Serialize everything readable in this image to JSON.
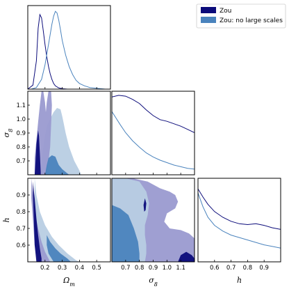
{
  "chart_data": {
    "type": "corner",
    "parameters": [
      {
        "key": "om",
        "label": "Ω",
        "label_sub": "m",
        "range": [
          0.1,
          0.58
        ],
        "ticks": [
          "0.2",
          "0.3",
          "0.4",
          "0.5"
        ],
        "tick_values": [
          0.2,
          0.3,
          0.4,
          0.5
        ]
      },
      {
        "key": "s8",
        "label": "σ",
        "label_sub": "8",
        "range": [
          0.6,
          1.2
        ],
        "ticks": [
          "0.7",
          "0.8",
          "0.9",
          "1.0",
          "1.1"
        ],
        "tick_values": [
          0.7,
          0.8,
          0.9,
          1.0,
          1.1
        ]
      },
      {
        "key": "h",
        "label": "h",
        "label_sub": "",
        "range": [
          0.5,
          1.0
        ],
        "ticks": [
          "0.6",
          "0.7",
          "0.8",
          "0.9"
        ],
        "tick_values": [
          0.6,
          0.7,
          0.8,
          0.9
        ]
      }
    ],
    "y_tick_labels": {
      "s8": [
        "0.7",
        "0.8",
        "0.9",
        "1.0",
        "1.1"
      ],
      "h": [
        "0.6",
        "0.7",
        "0.8",
        "0.9"
      ]
    },
    "x_tick_labels": {
      "om": [
        "0.2",
        "0.3",
        "0.4",
        "0.5"
      ],
      "s8": [
        "0.7",
        "0.8",
        "0.9",
        "1.0",
        "1.1"
      ],
      "h": [
        "0.6",
        "0.7",
        "0.8",
        "0.9"
      ]
    },
    "legend": {
      "placement": "top-right",
      "entries": [
        {
          "name": "Zou",
          "color": "#0b0b7a"
        },
        {
          "name": "Zou: no large scales",
          "color": "#4a83bd"
        }
      ]
    },
    "series": [
      {
        "name": "Zou",
        "color": "#0b0b7a",
        "marginals": {
          "om": {
            "x": [
              0.1,
              0.13,
              0.15,
              0.16,
              0.17,
              0.18,
              0.19,
              0.2,
              0.21,
              0.22,
              0.23,
              0.24,
              0.25,
              0.26,
              0.28,
              0.3,
              0.33
            ],
            "y": [
              0.0,
              0.05,
              0.35,
              0.75,
              0.92,
              0.88,
              0.72,
              0.55,
              0.4,
              0.28,
              0.19,
              0.12,
              0.07,
              0.04,
              0.015,
              0.005,
              0.0
            ]
          },
          "s8": {
            "x": [
              0.6,
              0.65,
              0.7,
              0.75,
              0.8,
              0.85,
              0.9,
              0.95,
              1.0,
              1.05,
              1.1,
              1.15,
              1.2
            ],
            "y": [
              0.96,
              0.98,
              0.97,
              0.93,
              0.88,
              0.8,
              0.73,
              0.68,
              0.66,
              0.63,
              0.6,
              0.56,
              0.52
            ]
          },
          "h": {
            "x": [
              0.5,
              0.53,
              0.56,
              0.6,
              0.65,
              0.7,
              0.75,
              0.8,
              0.85,
              0.9,
              0.95,
              1.0
            ],
            "y": [
              0.9,
              0.8,
              0.71,
              0.62,
              0.55,
              0.5,
              0.47,
              0.46,
              0.47,
              0.45,
              0.42,
              0.4
            ]
          }
        }
      },
      {
        "name": "Zou: no large scales",
        "color": "#4a83bd",
        "marginals": {
          "om": {
            "x": [
              0.12,
              0.15,
              0.18,
              0.2,
              0.22,
              0.24,
              0.25,
              0.26,
              0.27,
              0.28,
              0.29,
              0.3,
              0.32,
              0.34,
              0.36,
              0.38,
              0.4,
              0.43,
              0.46,
              0.5,
              0.55
            ],
            "y": [
              0.0,
              0.02,
              0.12,
              0.3,
              0.55,
              0.8,
              0.9,
              0.96,
              0.94,
              0.85,
              0.73,
              0.6,
              0.42,
              0.28,
              0.18,
              0.11,
              0.07,
              0.04,
              0.02,
              0.01,
              0.0
            ]
          },
          "s8": {
            "x": [
              0.6,
              0.63,
              0.66,
              0.7,
              0.75,
              0.8,
              0.85,
              0.9,
              0.95,
              1.0,
              1.05,
              1.1,
              1.15,
              1.2
            ],
            "y": [
              0.78,
              0.7,
              0.62,
              0.52,
              0.42,
              0.34,
              0.27,
              0.22,
              0.18,
              0.15,
              0.12,
              0.1,
              0.08,
              0.07
            ]
          },
          "h": {
            "x": [
              0.5,
              0.53,
              0.56,
              0.6,
              0.65,
              0.7,
              0.75,
              0.8,
              0.85,
              0.9,
              0.95,
              1.0
            ],
            "y": [
              0.85,
              0.68,
              0.55,
              0.45,
              0.38,
              0.33,
              0.3,
              0.27,
              0.24,
              0.21,
              0.19,
              0.17
            ]
          }
        }
      }
    ],
    "contours": {
      "s8_vs_om": [
        {
          "series": "Zou: no large scales",
          "level": "95%",
          "color": "#b8cde3",
          "points": [
            [
              0.18,
              0.6
            ],
            [
              0.18,
              0.7
            ],
            [
              0.19,
              0.8
            ],
            [
              0.2,
              0.88
            ],
            [
              0.21,
              0.95
            ],
            [
              0.23,
              1.0
            ],
            [
              0.25,
              1.05
            ],
            [
              0.27,
              1.08
            ],
            [
              0.29,
              1.07
            ],
            [
              0.3,
              1.02
            ],
            [
              0.31,
              0.96
            ],
            [
              0.32,
              0.9
            ],
            [
              0.34,
              0.8
            ],
            [
              0.37,
              0.7
            ],
            [
              0.4,
              0.63
            ],
            [
              0.41,
              0.6
            ]
          ]
        },
        {
          "series": "Zou",
          "level": "95%",
          "color": "#9a9ad0",
          "points": [
            [
              0.14,
              0.6
            ],
            [
              0.14,
              0.72
            ],
            [
              0.15,
              0.85
            ],
            [
              0.16,
              0.98
            ],
            [
              0.17,
              1.1
            ],
            [
              0.18,
              1.2
            ],
            [
              0.19,
              1.2
            ],
            [
              0.2,
              1.12
            ],
            [
              0.205,
              1.05
            ],
            [
              0.21,
              1.12
            ],
            [
              0.22,
              1.2
            ],
            [
              0.235,
              1.2
            ],
            [
              0.24,
              1.1
            ],
            [
              0.235,
              0.95
            ],
            [
              0.23,
              0.8
            ],
            [
              0.22,
              0.7
            ],
            [
              0.21,
              0.6
            ]
          ]
        },
        {
          "series": "Zou: no large scales",
          "level": "68%",
          "color": "#4a83bd",
          "points": [
            [
              0.2,
              0.6
            ],
            [
              0.21,
              0.67
            ],
            [
              0.22,
              0.72
            ],
            [
              0.24,
              0.74
            ],
            [
              0.26,
              0.73
            ],
            [
              0.27,
              0.7
            ],
            [
              0.28,
              0.67
            ],
            [
              0.3,
              0.64
            ],
            [
              0.33,
              0.61
            ],
            [
              0.34,
              0.6
            ]
          ]
        },
        {
          "series": "Zou",
          "level": "68%",
          "color": "#0b0b7a",
          "points": [
            [
              0.14,
              0.6
            ],
            [
              0.145,
              0.7
            ],
            [
              0.15,
              0.82
            ],
            [
              0.16,
              0.92
            ],
            [
              0.165,
              0.88
            ],
            [
              0.17,
              0.75
            ],
            [
              0.175,
              0.62
            ],
            [
              0.175,
              0.6
            ]
          ]
        }
      ],
      "h_vs_om": [
        {
          "series": "Zou: no large scales",
          "level": "95%",
          "color": "#b8cde3",
          "points": [
            [
              0.14,
              1.0
            ],
            [
              0.15,
              0.9
            ],
            [
              0.17,
              0.8
            ],
            [
              0.2,
              0.72
            ],
            [
              0.24,
              0.65
            ],
            [
              0.28,
              0.6
            ],
            [
              0.33,
              0.55
            ],
            [
              0.38,
              0.51
            ],
            [
              0.4,
              0.5
            ],
            [
              0.2,
              0.5
            ],
            [
              0.17,
              0.6
            ],
            [
              0.15,
              0.72
            ],
            [
              0.14,
              0.85
            ]
          ]
        },
        {
          "series": "Zou",
          "level": "95%",
          "color": "#9a9ad0",
          "points": [
            [
              0.12,
              1.0
            ],
            [
              0.13,
              0.9
            ],
            [
              0.14,
              0.8
            ],
            [
              0.16,
              0.7
            ],
            [
              0.18,
              0.62
            ],
            [
              0.2,
              0.56
            ],
            [
              0.22,
              0.52
            ],
            [
              0.23,
              0.5
            ],
            [
              0.16,
              0.5
            ],
            [
              0.14,
              0.6
            ],
            [
              0.13,
              0.75
            ],
            [
              0.12,
              0.88
            ]
          ]
        },
        {
          "series": "Zou: no large scales",
          "level": "68%",
          "color": "#4a83bd",
          "points": [
            [
              0.21,
              0.66
            ],
            [
              0.23,
              0.62
            ],
            [
              0.26,
              0.58
            ],
            [
              0.29,
              0.55
            ],
            [
              0.33,
              0.52
            ],
            [
              0.35,
              0.5
            ],
            [
              0.25,
              0.5
            ],
            [
              0.22,
              0.55
            ],
            [
              0.21,
              0.6
            ]
          ]
        },
        {
          "series": "Zou",
          "level": "68%",
          "color": "#0b0b7a",
          "points": [
            [
              0.13,
              0.98
            ],
            [
              0.14,
              0.88
            ],
            [
              0.15,
              0.76
            ],
            [
              0.16,
              0.66
            ],
            [
              0.17,
              0.58
            ],
            [
              0.18,
              0.52
            ],
            [
              0.18,
              0.5
            ],
            [
              0.15,
              0.5
            ],
            [
              0.14,
              0.6
            ],
            [
              0.135,
              0.75
            ],
            [
              0.13,
              0.9
            ]
          ]
        }
      ],
      "h_vs_s8": [
        {
          "series": "Zou",
          "level": "95%",
          "color": "#9a9ad0",
          "points": [
            [
              0.6,
              0.5
            ],
            [
              0.6,
              1.0
            ],
            [
              0.75,
              1.0
            ],
            [
              0.86,
              0.98
            ],
            [
              0.95,
              0.94
            ],
            [
              1.02,
              0.92
            ],
            [
              1.06,
              0.9
            ],
            [
              1.08,
              0.86
            ],
            [
              1.06,
              0.82
            ],
            [
              1.0,
              0.79
            ],
            [
              0.98,
              0.74
            ],
            [
              1.02,
              0.7
            ],
            [
              1.1,
              0.69
            ],
            [
              1.16,
              0.67
            ],
            [
              1.2,
              0.64
            ],
            [
              1.2,
              0.5
            ]
          ]
        },
        {
          "series": "Zou: no large scales",
          "level": "95%",
          "color": "#b8cde3",
          "points": [
            [
              0.6,
              0.5
            ],
            [
              0.6,
              1.0
            ],
            [
              0.7,
              1.0
            ],
            [
              0.8,
              0.98
            ],
            [
              0.85,
              0.92
            ],
            [
              0.87,
              0.85
            ],
            [
              0.86,
              0.78
            ],
            [
              0.84,
              0.72
            ],
            [
              0.84,
              0.66
            ],
            [
              0.85,
              0.6
            ],
            [
              0.85,
              0.55
            ],
            [
              0.84,
              0.5
            ]
          ]
        },
        {
          "series": "Zou: no large scales",
          "level": "68%",
          "color": "#4a83bd",
          "points": [
            [
              0.6,
              0.5
            ],
            [
              0.6,
              0.84
            ],
            [
              0.66,
              0.82
            ],
            [
              0.72,
              0.78
            ],
            [
              0.76,
              0.7
            ],
            [
              0.79,
              0.62
            ],
            [
              0.8,
              0.55
            ],
            [
              0.8,
              0.5
            ]
          ]
        },
        {
          "series": "Zou",
          "level": "68%",
          "color": "#0b0b7a",
          "points": [
            [
              0.83,
              0.84
            ],
            [
              0.84,
              0.88
            ],
            [
              0.85,
              0.85
            ],
            [
              0.845,
              0.81
            ],
            [
              0.835,
              0.8
            ]
          ]
        },
        {
          "series": "Zou",
          "level": "68%",
          "color": "#0b0b7a",
          "points": [
            [
              1.08,
              0.5
            ],
            [
              1.1,
              0.54
            ],
            [
              1.14,
              0.56
            ],
            [
              1.18,
              0.54
            ],
            [
              1.2,
              0.52
            ],
            [
              1.2,
              0.5
            ]
          ]
        }
      ]
    }
  }
}
